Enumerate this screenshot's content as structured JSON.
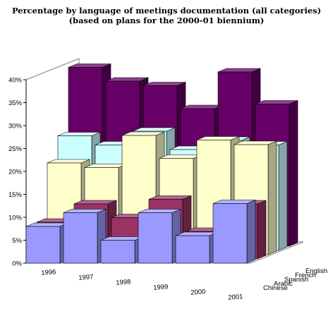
{
  "chart_data": {
    "type": "bar",
    "chart_style": "3d-stacked-rows",
    "title": "Percentage by language of meetings documentation (all categories)",
    "subtitle": "(based on plans for the 2000-01 biennium)",
    "categories": [
      "1996",
      "1997",
      "1998",
      "1999",
      "2000",
      "2001"
    ],
    "y_ticks": [
      "0%",
      "5%",
      "10%",
      "15%",
      "20%",
      "25%",
      "30%",
      "35%",
      "40%"
    ],
    "ylim": [
      0,
      40
    ],
    "grid": false,
    "legend": "none",
    "series": [
      {
        "name": "Chinese",
        "color": "#9999ff",
        "values": [
          8,
          11,
          5,
          11,
          6,
          13
        ]
      },
      {
        "name": "Arabic",
        "color": "#993366",
        "values": [
          8,
          12,
          9,
          13,
          6,
          12
        ]
      },
      {
        "name": "Spanish",
        "color": "#ffffcc",
        "values": [
          20,
          19,
          26,
          21,
          25,
          24
        ]
      },
      {
        "name": "French",
        "color": "#ccffff",
        "values": [
          25,
          23,
          26,
          22,
          24,
          23
        ]
      },
      {
        "name": "English",
        "color": "#660066",
        "values": [
          39,
          36,
          35,
          30,
          38,
          31
        ]
      }
    ]
  }
}
